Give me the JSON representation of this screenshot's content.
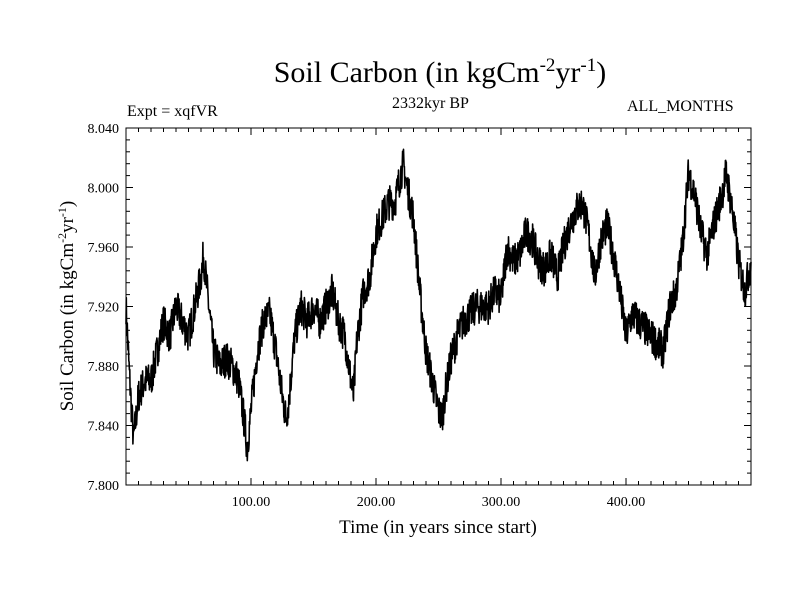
{
  "header": {
    "title_main": "Soil Carbon (in kgCm",
    "title_sup1": "-2",
    "title_mid": "yr",
    "title_sup2": "-1",
    "title_end": ")",
    "expt": "Expt = xqfVR",
    "period": "2332kyr BP",
    "months": "ALL_MONTHS"
  },
  "chart_data": {
    "type": "line",
    "title": "Soil Carbon (in kgCm-2yr-1)",
    "xlabel": "Time (in years since start)",
    "ylabel": "Soil Carbon (in kgCm-2yr-1)",
    "ylabel_parts": {
      "a": "Soil Carbon (in kgCm",
      "b": "-2",
      "c": "yr",
      "d": "-1",
      "e": ")"
    },
    "xlim": [
      0,
      500
    ],
    "ylim": [
      7.8,
      8.04
    ],
    "xticks": [
      100,
      200,
      300,
      400
    ],
    "xtick_labels": [
      "100.00",
      "200.00",
      "300.00",
      "400.00"
    ],
    "yticks": [
      7.8,
      7.84,
      7.88,
      7.92,
      7.96,
      8.0,
      8.04
    ],
    "ytick_labels": [
      "7.800",
      "7.840",
      "7.880",
      "7.920",
      "7.960",
      "8.000",
      "8.040"
    ],
    "series": [
      {
        "name": "Soil Carbon",
        "x": [
          0,
          3,
          6,
          10,
          15,
          20,
          25,
          30,
          35,
          40,
          45,
          50,
          55,
          60,
          62,
          65,
          70,
          75,
          80,
          85,
          90,
          95,
          97,
          100,
          105,
          110,
          115,
          120,
          125,
          128,
          130,
          135,
          140,
          145,
          150,
          155,
          160,
          165,
          170,
          175,
          180,
          182,
          185,
          190,
          195,
          200,
          205,
          210,
          215,
          220,
          222,
          225,
          230,
          235,
          240,
          245,
          250,
          253,
          255,
          260,
          265,
          270,
          275,
          280,
          285,
          290,
          295,
          300,
          305,
          310,
          315,
          320,
          325,
          330,
          335,
          340,
          345,
          350,
          355,
          360,
          365,
          370,
          375,
          380,
          385,
          390,
          395,
          400,
          405,
          410,
          415,
          420,
          425,
          430,
          435,
          440,
          445,
          450,
          455,
          460,
          465,
          470,
          475,
          478,
          480,
          485,
          490,
          495,
          500
        ],
        "y": [
          7.92,
          7.87,
          7.83,
          7.86,
          7.87,
          7.87,
          7.89,
          7.91,
          7.9,
          7.92,
          7.91,
          7.9,
          7.92,
          7.94,
          7.955,
          7.93,
          7.89,
          7.88,
          7.885,
          7.88,
          7.87,
          7.84,
          7.825,
          7.85,
          7.89,
          7.91,
          7.915,
          7.89,
          7.86,
          7.845,
          7.855,
          7.9,
          7.92,
          7.91,
          7.92,
          7.91,
          7.92,
          7.93,
          7.91,
          7.9,
          7.87,
          7.86,
          7.9,
          7.93,
          7.94,
          7.97,
          7.98,
          7.99,
          7.99,
          8.01,
          8.015,
          8.0,
          7.98,
          7.93,
          7.89,
          7.87,
          7.85,
          7.845,
          7.86,
          7.885,
          7.9,
          7.91,
          7.915,
          7.92,
          7.92,
          7.92,
          7.93,
          7.925,
          7.96,
          7.95,
          7.955,
          7.97,
          7.965,
          7.95,
          7.945,
          7.955,
          7.94,
          7.96,
          7.975,
          7.985,
          7.99,
          7.97,
          7.94,
          7.965,
          7.975,
          7.955,
          7.93,
          7.9,
          7.915,
          7.91,
          7.905,
          7.9,
          7.895,
          7.89,
          7.92,
          7.93,
          7.96,
          8.01,
          7.995,
          7.97,
          7.955,
          7.975,
          7.99,
          8.0,
          8.01,
          7.985,
          7.95,
          7.93,
          7.95
        ]
      }
    ]
  }
}
